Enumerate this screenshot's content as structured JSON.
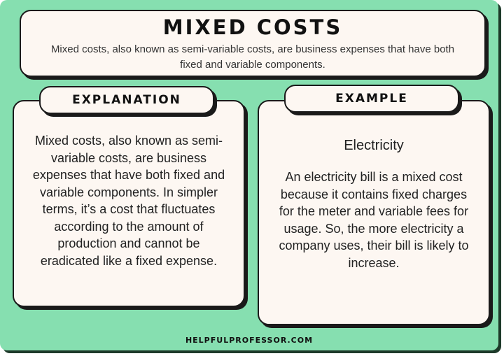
{
  "header": {
    "title": "MIXED COSTS",
    "subtitle_lines": [
      "Mixed costs, also known as semi-variable costs, are business expenses that have both",
      "fixed and variable components."
    ]
  },
  "explanation": {
    "tab_label": "EXPLANATION",
    "lines": [
      "Mixed costs, also known as semi-",
      "variable costs, are business",
      "expenses that have both fixed and",
      "variable components. In simpler",
      "terms, it’s a cost that fluctuates",
      "according to the amount of",
      "production and cannot be",
      "eradicated like a fixed expense."
    ]
  },
  "example": {
    "tab_label": "EXAMPLE",
    "title": "Electricity",
    "lines": [
      "An electricity bill is a mixed cost",
      "because it contains fixed charges",
      "for the meter and variable fees for",
      "usage. So, the more electricity a",
      "company uses, their bill is likely to",
      "increase."
    ]
  },
  "footer": {
    "text": "HELPFULPROFESSOR.COM"
  },
  "colors": {
    "background": "#86dfb0",
    "card": "#fdf7f2",
    "border": "#1a1a1a"
  }
}
